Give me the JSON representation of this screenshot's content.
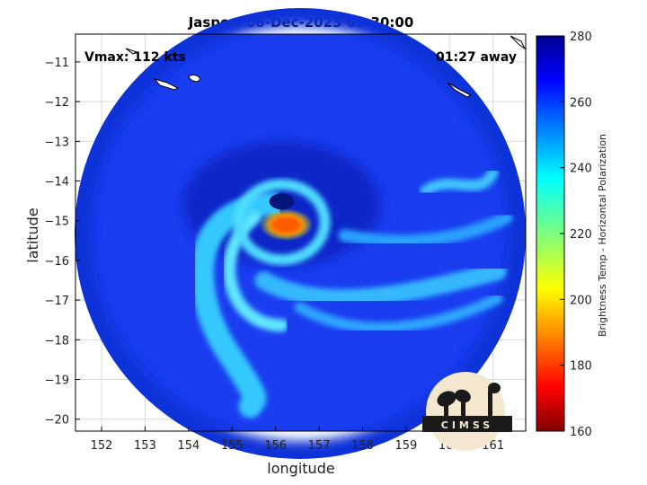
{
  "chart_data": {
    "type": "heatmap",
    "title": "Jasper: 08-Dec-2023 09:30:00",
    "xlabel": "longitude",
    "ylabel": "latitude",
    "xlim": [
      151.4,
      161.75
    ],
    "ylim": [
      -20.3,
      -10.3
    ],
    "xticks": [
      152,
      153,
      154,
      155,
      156,
      157,
      158,
      159,
      160,
      161
    ],
    "yticks": [
      -11,
      -12,
      -13,
      -14,
      -15,
      -16,
      -17,
      -18,
      -19,
      -20
    ],
    "grid": true,
    "storm_center": {
      "lon": 156.35,
      "lat": -15.6
    },
    "annotations": {
      "vmax": "Vmax: 112 kts",
      "away": "01:27 away"
    },
    "colorbar": {
      "label": "Brightness Temp - Horizontal Polarization",
      "range": [
        160,
        280
      ],
      "ticks": [
        160,
        180,
        200,
        220,
        240,
        260,
        280
      ],
      "colormap": "jet"
    },
    "logo_text": "CIMSS"
  },
  "colors": {
    "background": "#ffffff",
    "axis": "#000000",
    "grid": "#d9d9d9",
    "land_outline": "#000000"
  }
}
